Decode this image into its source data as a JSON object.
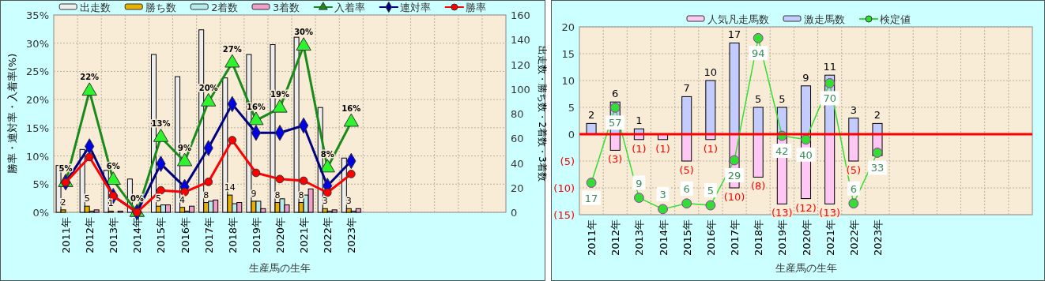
{
  "chart_data": [
    {
      "type": "bar",
      "xlabel": "生産馬の生年",
      "ylabel": "勝率・連対率・入着率(%)",
      "y2label": "出走数・勝ち数・2着数・3着数",
      "categories": [
        "2011年",
        "2012年",
        "2013年",
        "2014年",
        "2015年",
        "2016年",
        "2017年",
        "2018年",
        "2019年",
        "2020年",
        "2021年",
        "2022年",
        "2023年",
        null,
        null,
        null,
        null,
        null,
        null
      ],
      "ylim": [
        0,
        35
      ],
      "yticks": [
        {
          "value": 0,
          "label": "0%"
        },
        {
          "value": 5,
          "label": "5%"
        },
        {
          "value": 10,
          "label": "10%"
        },
        {
          "value": 15,
          "label": "15%"
        },
        {
          "value": 20,
          "label": "20%"
        },
        {
          "value": 25,
          "label": "25%"
        },
        {
          "value": 30,
          "label": "30%"
        },
        {
          "value": 35,
          "label": "35%"
        }
      ],
      "y2lim": [
        0,
        160
      ],
      "y2ticks": [
        0,
        20,
        40,
        60,
        80,
        100,
        120,
        140,
        160
      ],
      "grid": true,
      "legend": "top",
      "series": [
        {
          "name": "出走数",
          "axis": "y2",
          "color": "#eeeeee",
          "values": [
            38,
            51,
            34,
            27,
            128,
            110,
            148,
            109,
            128,
            136,
            142,
            85,
            44,
            null,
            null,
            null,
            null,
            null,
            null
          ]
        },
        {
          "name": "勝ち数",
          "axis": "y2",
          "color": "#e8b000",
          "values": [
            2,
            5,
            1,
            0,
            5,
            4,
            8,
            14,
            9,
            8,
            8,
            3,
            3,
            null,
            null,
            null,
            null,
            null,
            null
          ],
          "value_labels": [
            "2",
            "5",
            "1",
            null,
            "5",
            "4",
            "8",
            "14",
            "9",
            "8",
            "8",
            "3",
            "3",
            null,
            null,
            null,
            null,
            null,
            null
          ]
        },
        {
          "name": "2着数",
          "axis": "y2",
          "color": "#b8ecec",
          "values": [
            0,
            1,
            0,
            0,
            6,
            1,
            9,
            7,
            9,
            11,
            14,
            1,
            1,
            null,
            null,
            null,
            null,
            null,
            null
          ]
        },
        {
          "name": "3着数",
          "axis": "y2",
          "color": "#f0a0c8",
          "values": [
            0,
            2,
            1,
            0,
            6,
            5,
            10,
            8,
            3,
            6,
            19,
            2,
            3,
            null,
            null,
            null,
            null,
            null,
            null
          ]
        },
        {
          "name": "入着率",
          "type": "line",
          "marker": "triangle",
          "color": "#1a8a1a",
          "values": [
            5.3,
            21.5,
            5.7,
            0,
            13.3,
            9.0,
            19.6,
            26.5,
            16.3,
            18.5,
            29.5,
            7.9,
            16.0,
            null,
            null,
            null,
            null,
            null,
            null
          ],
          "value_labels": [
            "5%",
            "22%",
            "6%",
            "0%",
            "13%",
            "9%",
            "20%",
            "27%",
            "16%",
            "19%",
            "30%",
            "8%",
            "16%",
            null,
            null,
            null,
            null,
            null,
            null
          ]
        },
        {
          "name": "連対率",
          "type": "line",
          "marker": "diamond",
          "color": "#000080",
          "values": [
            5.3,
            11.7,
            2.9,
            0,
            8.6,
            4.5,
            11.4,
            19.2,
            14.1,
            14.1,
            15.4,
            4.7,
            9.1,
            null,
            null,
            null,
            null,
            null,
            null
          ]
        },
        {
          "name": "勝率",
          "type": "line",
          "marker": "circle",
          "color": "#ff0000",
          "values": [
            5.3,
            9.8,
            2.9,
            0,
            3.9,
            3.6,
            5.4,
            12.8,
            7.0,
            5.9,
            5.6,
            3.5,
            6.8,
            null,
            null,
            null,
            null,
            null,
            null
          ]
        }
      ]
    },
    {
      "type": "bar",
      "stacked": true,
      "xlabel": "生産馬の生年",
      "categories": [
        "2011年",
        "2012年",
        "2013年",
        "2014年",
        "2015年",
        "2016年",
        "2017年",
        "2018年",
        "2019年",
        "2020年",
        "2021年",
        "2022年",
        "2023年",
        null,
        null,
        null,
        null,
        null,
        null
      ],
      "ylim": [
        -15,
        20
      ],
      "yticks": [
        {
          "value": -15,
          "label": "(15)"
        },
        {
          "value": -10,
          "label": "(10)"
        },
        {
          "value": -5,
          "label": "(5)"
        },
        0,
        5,
        10,
        15,
        20
      ],
      "y2lim": [
        0,
        100
      ],
      "grid": true,
      "legend": "top",
      "ref_lines": [
        {
          "axis": "y",
          "value": 0,
          "color": "#ff0000"
        }
      ],
      "series": [
        {
          "name": "人気凡走馬数",
          "color": "#ffc8f4",
          "values": [
            null,
            -3,
            -1,
            -1,
            -5,
            -1,
            -10,
            -8,
            -13,
            -12,
            -13,
            -5,
            -4,
            null,
            null,
            null,
            null,
            null,
            null
          ],
          "value_labels": [
            null,
            "(3)",
            "(1)",
            "(1)",
            "(5)",
            "(1)",
            "(10)",
            "(8)",
            "(13)",
            "(12)",
            "(13)",
            "(5)",
            null,
            null,
            null,
            null,
            null,
            null,
            null
          ]
        },
        {
          "name": "激走馬数",
          "color": "#c4ccff",
          "values": [
            2,
            6,
            1,
            null,
            7,
            10,
            17,
            5,
            5,
            9,
            11,
            3,
            2,
            null,
            null,
            null,
            null,
            null,
            null
          ],
          "value_labels": [
            "2",
            "6",
            "1",
            null,
            "7",
            "10",
            "17",
            "5",
            "5",
            "9",
            "11",
            "3",
            "2",
            null,
            null,
            null,
            null,
            null,
            null
          ]
        },
        {
          "name": "検定値",
          "type": "line",
          "axis": "y2",
          "marker": "circle",
          "color": "#33dd33",
          "values": [
            17,
            57,
            9,
            3,
            6,
            5,
            29,
            94,
            42,
            40,
            70,
            6,
            33,
            null,
            null,
            null,
            null,
            null,
            null
          ],
          "value_labels": [
            "17",
            "57",
            "9",
            "3",
            "6",
            "5",
            "29",
            "94",
            "42",
            "40",
            "70",
            "6",
            "33",
            null,
            null,
            null,
            null,
            null,
            null
          ]
        }
      ]
    }
  ]
}
